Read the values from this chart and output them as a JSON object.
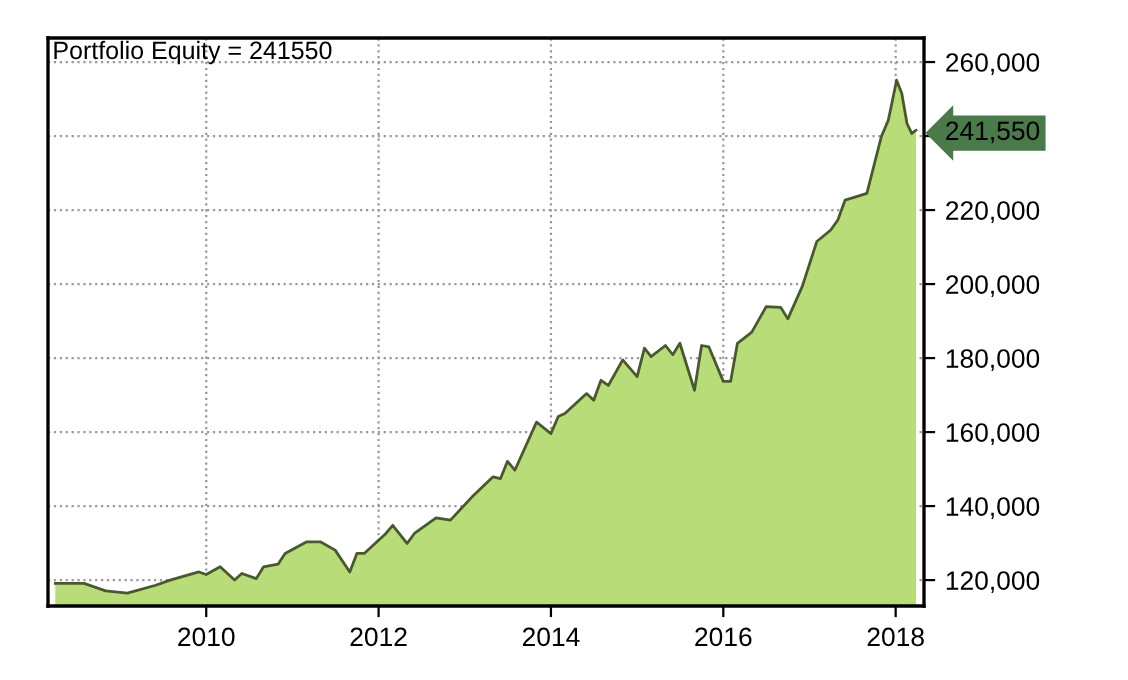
{
  "chart_data": {
    "type": "area",
    "title": "Portfolio Equity = 241550",
    "x": [
      "2008-04",
      "2008-08",
      "2008-11",
      "2009-02",
      "2009-06",
      "2009-08",
      "2009-12",
      "2010-01",
      "2010-03",
      "2010-05",
      "2010-06",
      "2010-08",
      "2010-09",
      "2010-11",
      "2010-12",
      "2011-03",
      "2011-05",
      "2011-07",
      "2011-09",
      "2011-10",
      "2011-11",
      "2012-02",
      "2012-03",
      "2012-05",
      "2012-06",
      "2012-09",
      "2012-11",
      "2013-02",
      "2013-05",
      "2013-06",
      "2013-07",
      "2013-08",
      "2013-11",
      "2014-01",
      "2014-02",
      "2014-03",
      "2014-06",
      "2014-07",
      "2014-08",
      "2014-09",
      "2014-11",
      "2015-01",
      "2015-02",
      "2015-03",
      "2015-05",
      "2015-06",
      "2015-07",
      "2015-09",
      "2015-10",
      "2015-11",
      "2016-01",
      "2016-02",
      "2016-03",
      "2016-05",
      "2016-07",
      "2016-09",
      "2016-10",
      "2016-12",
      "2017-02",
      "2017-04",
      "2017-05",
      "2017-06",
      "2017-09",
      "2017-11",
      "2017-12",
      "2018-01-05",
      "2018-01-27",
      "2018-02-18",
      "2018-03-10",
      "2018-03-28"
    ],
    "series": [
      {
        "color": "#b8dc78",
        "values": [
          119100,
          119100,
          117100,
          116500,
          118600,
          120000,
          122200,
          121500,
          123600,
          120000,
          121800,
          120400,
          123600,
          124300,
          127200,
          130300,
          130300,
          128100,
          122200,
          127200,
          127200,
          132600,
          134800,
          129900,
          132600,
          136800,
          136200,
          142500,
          147900,
          147400,
          152100,
          149700,
          162700,
          159600,
          164200,
          165000,
          170400,
          168600,
          174000,
          172600,
          179500,
          175000,
          182700,
          180400,
          183400,
          180900,
          184000,
          171300,
          183400,
          183000,
          173700,
          173700,
          184000,
          187000,
          193900,
          193700,
          190600,
          199300,
          211500,
          214600,
          217300,
          222700,
          224500,
          239800,
          244300,
          255100,
          251500,
          243400,
          240700,
          241550
        ]
      }
    ],
    "xlim": [
      "2008-03",
      "2018-05"
    ],
    "xticks": [
      {
        "value": "2010",
        "label": "2010"
      },
      {
        "value": "2012",
        "label": "2012"
      },
      {
        "value": "2014",
        "label": "2014"
      },
      {
        "value": "2016",
        "label": "2016"
      },
      {
        "value": "2018",
        "label": "2018"
      }
    ],
    "ylim": [
      113000,
      266500
    ],
    "yticks": [
      {
        "value": 120000,
        "label": "120,000"
      },
      {
        "value": 140000,
        "label": "140,000"
      },
      {
        "value": 160000,
        "label": "160,000"
      },
      {
        "value": 180000,
        "label": "180,000"
      },
      {
        "value": 200000,
        "label": "200,000"
      },
      {
        "value": 220000,
        "label": "220,000"
      },
      {
        "value": 240000,
        "label": null
      },
      {
        "value": 241550,
        "label": "241,550"
      },
      {
        "value": 260000,
        "label": "260,000"
      }
    ],
    "grid": true,
    "line_style": "solid"
  }
}
